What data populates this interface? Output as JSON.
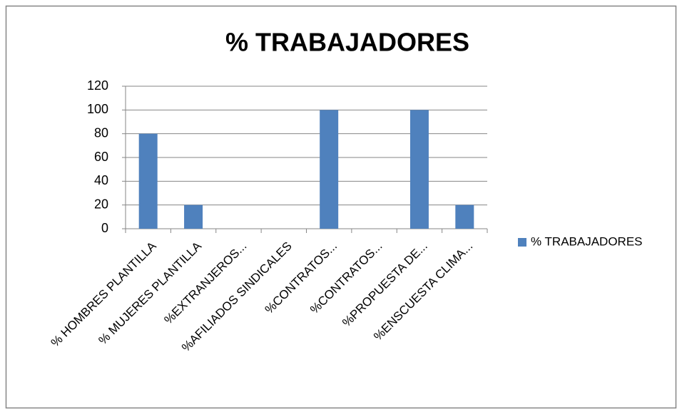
{
  "chart_data": {
    "type": "bar",
    "title": "% TRABAJADORES",
    "categories": [
      "% HOMBRES PLANTILLA",
      "% MUJERES PLANTILLA",
      "%EXTRANJEROS...",
      "%AFILIADOS SINDICALES",
      "%CONTRATOS...",
      "%CONTRATOS...",
      "%PROPUESTA DE...",
      "%ENSCUESTA CLIMA..."
    ],
    "series": [
      {
        "name": "% TRABAJADORES",
        "color": "#4f81bd",
        "values": [
          80,
          20,
          0,
          0,
          100,
          0,
          100,
          20
        ]
      }
    ],
    "ylim": [
      0,
      120
    ],
    "yticks": [
      0,
      20,
      40,
      60,
      80,
      100,
      120
    ],
    "grid": true,
    "legend": "right"
  }
}
